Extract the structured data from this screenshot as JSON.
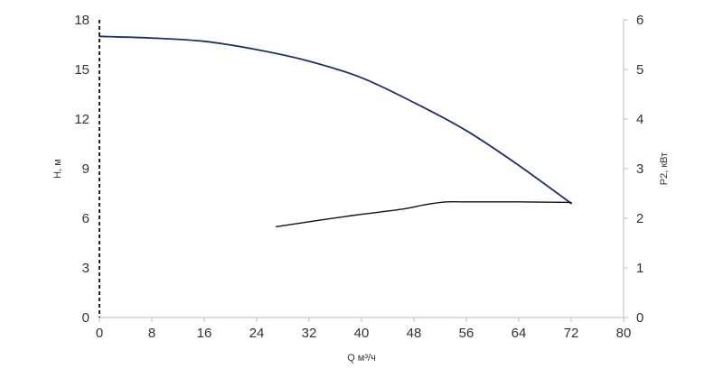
{
  "chart_data": {
    "type": "line",
    "x_axis": {
      "label": "Q м³/ч",
      "range": [
        0,
        80
      ],
      "ticks": [
        "0",
        "8",
        "16",
        "24",
        "32",
        "40",
        "48",
        "56",
        "64",
        "72",
        "80"
      ]
    },
    "y_axis_left": {
      "label": "H, м",
      "range": [
        0,
        18
      ],
      "ticks": [
        "0",
        "3",
        "6",
        "9",
        "12",
        "15",
        "18"
      ]
    },
    "y_axis_right": {
      "label": "P2, кВт",
      "range": [
        0,
        6
      ],
      "ticks": [
        "0",
        "1",
        "2",
        "3",
        "4",
        "5",
        "6"
      ]
    },
    "grid": false,
    "series": [
      {
        "axis": "left",
        "color": "#1f2f6b",
        "x": [
          0,
          8,
          16,
          24,
          32,
          40,
          48,
          56,
          64,
          72
        ],
        "y": [
          17.0,
          16.9,
          16.7,
          16.2,
          15.5,
          14.5,
          13.0,
          11.3,
          9.2,
          6.9
        ]
      },
      {
        "axis": "right",
        "color": "#111111",
        "x": [
          27,
          34,
          40,
          46,
          50,
          53,
          56,
          64,
          72
        ],
        "y": [
          1.83,
          1.97,
          2.08,
          2.18,
          2.28,
          2.33,
          2.33,
          2.33,
          2.32
        ]
      }
    ]
  }
}
